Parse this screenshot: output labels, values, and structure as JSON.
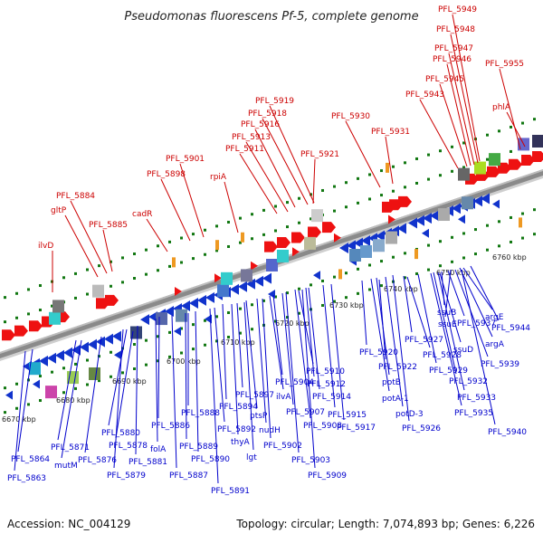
{
  "title": "Pseudomonas fluorescens Pf-5, complete genome",
  "footer": {
    "accession": "Accession: NC_004129",
    "summary": "Topology: circular; Length: 7,074,893 bp; Genes: 6,226"
  },
  "colors": {
    "top_label": "#cc0000",
    "bottom_label": "#0000cc",
    "backbone": "#888888",
    "forward_gene": "#ee1111",
    "reverse_gene": "#1133cc",
    "tick": "#117711"
  },
  "scale": {
    "unit": "kbp",
    "labels": [
      "6670 kbp",
      "6680 kbp",
      "6690 kbp",
      "6700 kbp",
      "6710 kbp",
      "6720 kbp",
      "6730 kbp",
      "6740 kbp",
      "6750 kbp",
      "6760 kbp"
    ]
  },
  "top_labels": [
    {
      "text": "PFL_5949"
    },
    {
      "text": "PFL_5948"
    },
    {
      "text": "PFL_5947"
    },
    {
      "text": "PFL_5946"
    },
    {
      "text": "PFL_5955"
    },
    {
      "text": "PFL_5945"
    },
    {
      "text": "phlA"
    },
    {
      "text": "PFL_5943"
    },
    {
      "text": "PFL_5919"
    },
    {
      "text": "PFL_5918"
    },
    {
      "text": "PFL_5930"
    },
    {
      "text": "PFL_5916"
    },
    {
      "text": "PFL_5931"
    },
    {
      "text": "PFL_5913"
    },
    {
      "text": "PFL_5911"
    },
    {
      "text": "PFL_5921"
    },
    {
      "text": "PFL_5901"
    },
    {
      "text": "PFL_5898"
    },
    {
      "text": "rpiA"
    },
    {
      "text": "PFL_5884"
    },
    {
      "text": "cadR"
    },
    {
      "text": "gltP"
    },
    {
      "text": "PFL_5885"
    },
    {
      "text": "ilvD"
    }
  ],
  "bottom_labels": [
    {
      "text": "argE"
    },
    {
      "text": "PFL_5944"
    },
    {
      "text": "PFL_5937"
    },
    {
      "text": "ssuB"
    },
    {
      "text": "ssuE"
    },
    {
      "text": "argA"
    },
    {
      "text": "ssuD"
    },
    {
      "text": "PFL_5927"
    },
    {
      "text": "PFL_5920"
    },
    {
      "text": "PFL_5928"
    },
    {
      "text": "PFL_5939"
    },
    {
      "text": "PFL_5922"
    },
    {
      "text": "PFL_5929"
    },
    {
      "text": "potB"
    },
    {
      "text": "PFL_5932"
    },
    {
      "text": "PFL_5933"
    },
    {
      "text": "potA-1"
    },
    {
      "text": "PFL_5910"
    },
    {
      "text": "PFL_5904"
    },
    {
      "text": "PFL_5912"
    },
    {
      "text": "PFL_5897"
    },
    {
      "text": "ilvA"
    },
    {
      "text": "PFL_5914"
    },
    {
      "text": "PFL_5907"
    },
    {
      "text": "potD-3"
    },
    {
      "text": "PFL_5935"
    },
    {
      "text": "PFL_5888"
    },
    {
      "text": "PFL_5894"
    },
    {
      "text": "ptsP"
    },
    {
      "text": "PFL_5915"
    },
    {
      "text": "PFL_5886"
    },
    {
      "text": "nudH"
    },
    {
      "text": "PFL_5908"
    },
    {
      "text": "PFL_5926"
    },
    {
      "text": "PFL_5917"
    },
    {
      "text": "PFL_5880"
    },
    {
      "text": "PFL_5892"
    },
    {
      "text": "PFL_5940"
    },
    {
      "text": "PFL_5878"
    },
    {
      "text": "thyA"
    },
    {
      "text": "PFL_5871"
    },
    {
      "text": "PFL_5889"
    },
    {
      "text": "folA"
    },
    {
      "text": "PFL_5902"
    },
    {
      "text": "PFL_5876"
    },
    {
      "text": "lgt"
    },
    {
      "text": "PFL_5864"
    },
    {
      "text": "PFL_5890"
    },
    {
      "text": "PFL_5881"
    },
    {
      "text": "mutM"
    },
    {
      "text": "PFL_5903"
    },
    {
      "text": "PFL_5879"
    },
    {
      "text": "PFL_5887"
    },
    {
      "text": "PFL_5909"
    },
    {
      "text": "PFL_5863"
    },
    {
      "text": "PFL_5891"
    }
  ]
}
